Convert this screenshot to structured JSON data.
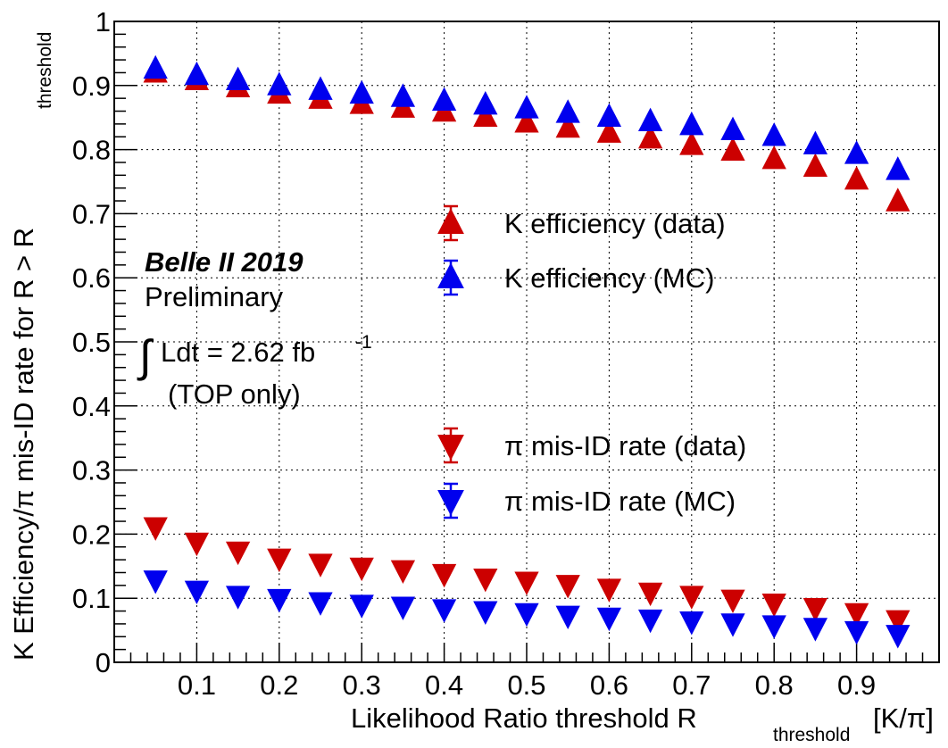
{
  "chart_data": {
    "type": "scatter",
    "xlabel_main": "Likelihood Ratio threshold R",
    "xlabel_sub": "threshold",
    "xlabel_tail": "[K/π]",
    "ylabel_main": "K Efficiency/π mis-ID rate for R > R",
    "ylabel_sub": "threshold",
    "xlim": [
      0,
      1
    ],
    "ylim": [
      0,
      1
    ],
    "x_ticks": [
      "0.1",
      "0.2",
      "0.3",
      "0.4",
      "0.5",
      "0.6",
      "0.7",
      "0.8",
      "0.9"
    ],
    "y_ticks": [
      "0",
      "0.1",
      "0.2",
      "0.3",
      "0.4",
      "0.5",
      "0.6",
      "0.7",
      "0.8",
      "0.9",
      "1"
    ],
    "grid": true,
    "x": [
      0.05,
      0.1,
      0.15,
      0.2,
      0.25,
      0.3,
      0.35,
      0.4,
      0.45,
      0.5,
      0.55,
      0.6,
      0.65,
      0.7,
      0.75,
      0.8,
      0.85,
      0.9,
      0.95
    ],
    "series": [
      {
        "name": "K efficiency (data)",
        "marker": "triangle-up",
        "color": "#cc0000",
        "values": [
          0.92,
          0.908,
          0.897,
          0.887,
          0.879,
          0.871,
          0.865,
          0.859,
          0.851,
          0.842,
          0.834,
          0.826,
          0.817,
          0.807,
          0.798,
          0.785,
          0.773,
          0.753,
          0.719
        ]
      },
      {
        "name": "K efficiency (MC)",
        "marker": "triangle-up",
        "color": "#0000ee",
        "values": [
          0.926,
          0.916,
          0.908,
          0.9,
          0.893,
          0.887,
          0.882,
          0.876,
          0.87,
          0.864,
          0.857,
          0.851,
          0.844,
          0.838,
          0.83,
          0.821,
          0.808,
          0.793,
          0.768
        ]
      },
      {
        "name": "π mis-ID rate (data)",
        "marker": "triangle-down",
        "color": "#cc0000",
        "values": [
          0.211,
          0.187,
          0.173,
          0.162,
          0.154,
          0.148,
          0.144,
          0.138,
          0.131,
          0.126,
          0.121,
          0.115,
          0.109,
          0.104,
          0.098,
          0.092,
          0.085,
          0.077,
          0.066
        ]
      },
      {
        "name": "π mis-ID rate (MC)",
        "marker": "triangle-down",
        "color": "#0000ee",
        "values": [
          0.128,
          0.112,
          0.104,
          0.099,
          0.094,
          0.09,
          0.087,
          0.083,
          0.08,
          0.077,
          0.073,
          0.07,
          0.067,
          0.064,
          0.061,
          0.058,
          0.054,
          0.049,
          0.043
        ]
      }
    ],
    "legend": [
      {
        "label": "K efficiency (data)",
        "marker": "triangle-up",
        "color": "#cc0000"
      },
      {
        "label": "K efficiency (MC)",
        "marker": "triangle-up",
        "color": "#0000ee"
      },
      {
        "label": "π mis-ID rate (data)",
        "marker": "triangle-down",
        "color": "#cc0000"
      },
      {
        "label": "π mis-ID rate (MC)",
        "marker": "triangle-down",
        "color": "#0000ee"
      }
    ],
    "annotations": {
      "experiment": "Belle II 2019",
      "status": "Preliminary",
      "lumi_main": "Ldt = 2.62 fb",
      "lumi_sup": "-1",
      "integral_symbol": "∫",
      "note": "(TOP only)"
    }
  }
}
